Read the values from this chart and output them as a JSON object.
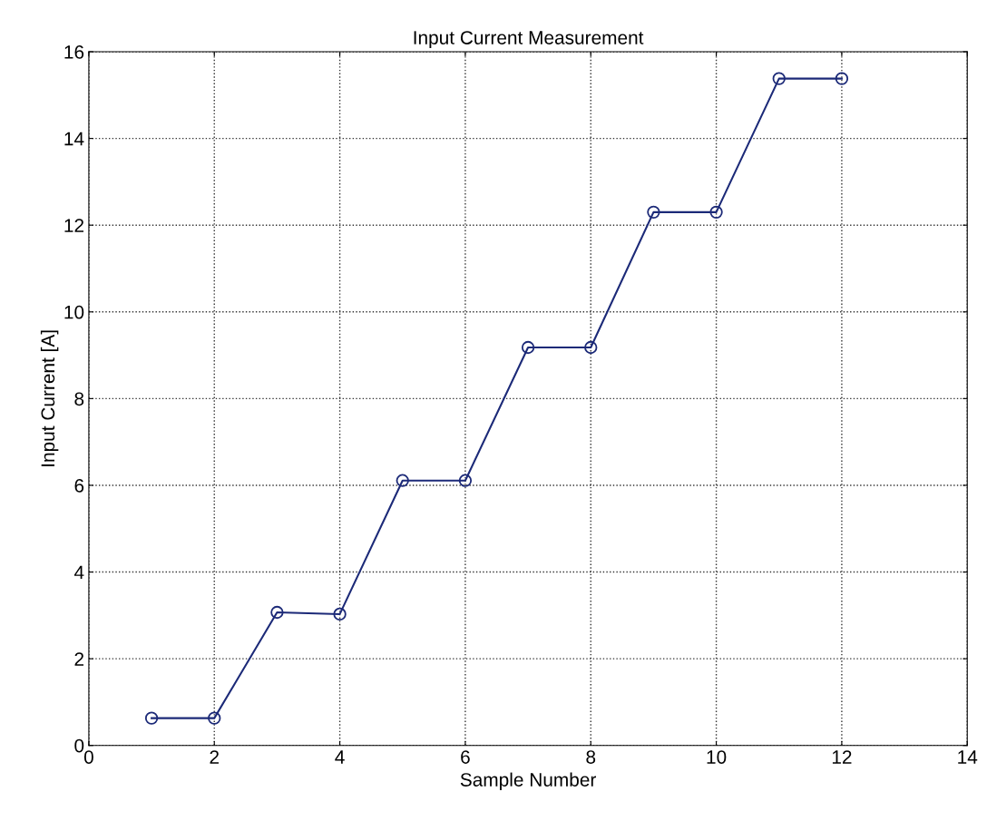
{
  "chart_data": {
    "type": "line",
    "title": "Input Current Measurement",
    "xlabel": "Sample Number",
    "ylabel": "Input Current [A]",
    "x": [
      1,
      2,
      3,
      4,
      5,
      6,
      7,
      8,
      9,
      10,
      11,
      12
    ],
    "series": [
      {
        "color": "#1c2a78",
        "values": [
          0.63,
          0.63,
          3.07,
          3.03,
          6.11,
          6.11,
          9.18,
          9.18,
          12.3,
          12.3,
          15.38,
          15.38
        ]
      }
    ],
    "xlim": [
      0,
      14
    ],
    "xticks": [
      0,
      2,
      4,
      6,
      8,
      10,
      12,
      14
    ],
    "ylim": [
      0,
      16
    ],
    "yticks": [
      0,
      2,
      4,
      6,
      8,
      10,
      12,
      14,
      16
    ],
    "grid": true,
    "marker": "circle",
    "line_style": "solid"
  }
}
